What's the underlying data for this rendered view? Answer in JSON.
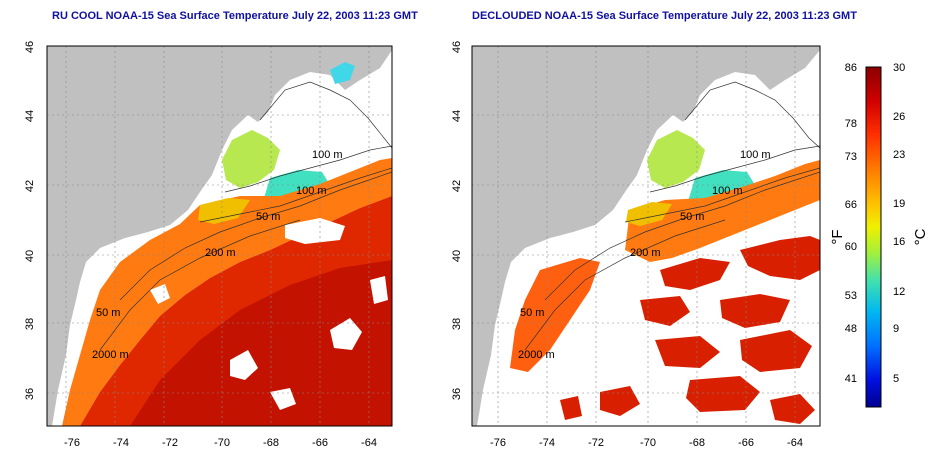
{
  "colors": {
    "land": "#c0c0c0",
    "water_masked": "#ffffff",
    "title": "#1010a0",
    "grid": "#888888"
  },
  "panels": [
    {
      "title": "RU COOL NOAA-15 Sea Surface Temperature July 22, 2003 11:23 GMT",
      "lat_ticks": [
        "46",
        "44",
        "42",
        "40",
        "38",
        "36"
      ],
      "lon_ticks": [
        "-76",
        "-74",
        "-72",
        "-70",
        "-68",
        "-66",
        "-64"
      ],
      "contour_labels": [
        "100 m",
        "100 m",
        "50 m",
        "200 m",
        "50 m",
        "2000 m"
      ]
    },
    {
      "title": "DECLOUDED NOAA-15 Sea Surface Temperature July 22, 2003 11:23 GMT",
      "lat_ticks": [
        "46",
        "44",
        "42",
        "40",
        "38",
        "36"
      ],
      "lon_ticks": [
        "-76",
        "-74",
        "-72",
        "-70",
        "-68",
        "-66",
        "-64"
      ],
      "contour_labels": [
        "100 m",
        "100 m",
        "50 m",
        "200 m",
        "50 m",
        "2000 m"
      ]
    }
  ],
  "colorbar": {
    "fahrenheit_ticks": [
      "86",
      "78",
      "73",
      "66",
      "60",
      "53",
      "48",
      "41"
    ],
    "celsius_ticks": [
      "30",
      "26",
      "23",
      "19",
      "16",
      "12",
      "9",
      "5"
    ],
    "fahrenheit_label": "°F",
    "celsius_label": "°C",
    "gradient": [
      "#8b0000",
      "#c80000",
      "#ff2000",
      "#ff7000",
      "#ffb000",
      "#f0f000",
      "#a0f040",
      "#40e0c0",
      "#00b0f0",
      "#0060ff",
      "#0000e0",
      "#000090"
    ]
  }
}
